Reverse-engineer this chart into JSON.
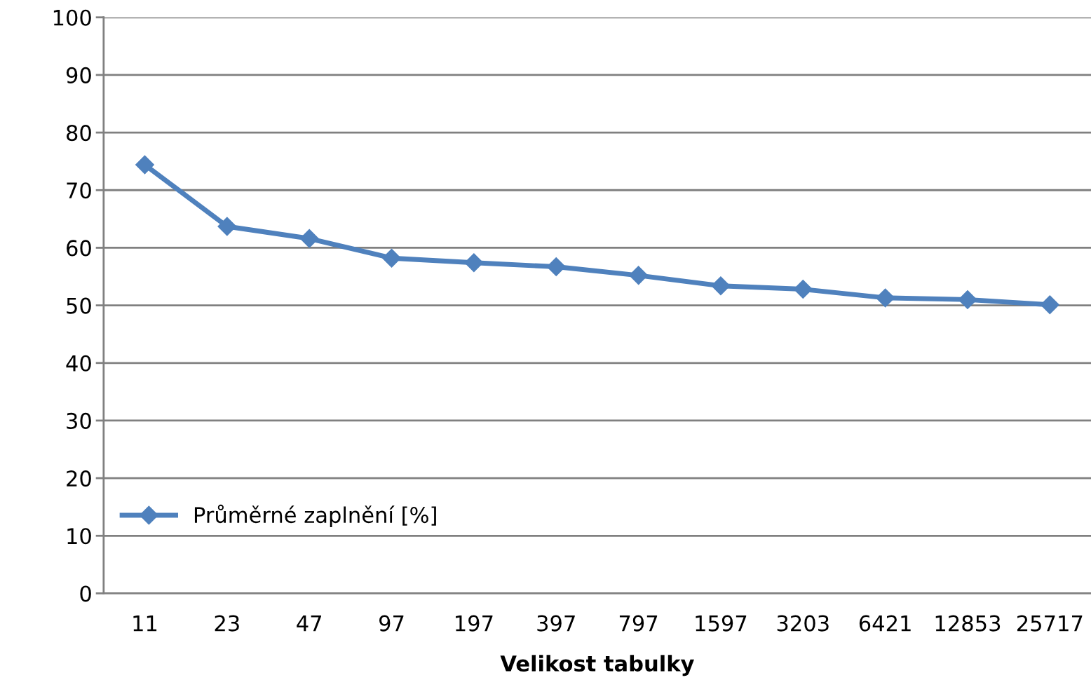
{
  "chart_data": {
    "type": "line",
    "xlabel": "Velikost tabulky",
    "categories": [
      "11",
      "23",
      "47",
      "97",
      "197",
      "397",
      "797",
      "1597",
      "3203",
      "6421",
      "12853",
      "25717"
    ],
    "series": [
      {
        "name": "Průměrné zaplnění [%]",
        "color": "#4f81bd",
        "values": [
          74.4,
          63.7,
          61.6,
          58.2,
          57.4,
          56.7,
          55.2,
          53.4,
          52.8,
          51.3,
          51.0,
          50.1
        ]
      }
    ],
    "ylim": [
      0,
      100
    ],
    "yticks": [
      0,
      10,
      20,
      30,
      40,
      50,
      60,
      70,
      80,
      90,
      100
    ],
    "grid": "y",
    "legend": "bottom left",
    "marker": "diamond",
    "line_style": "solid"
  }
}
